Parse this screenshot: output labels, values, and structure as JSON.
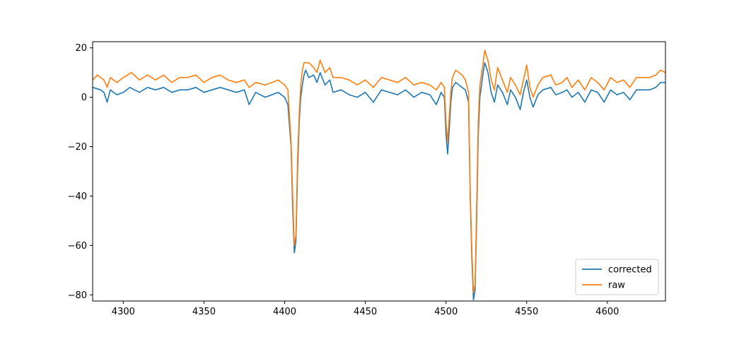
{
  "chart_data": {
    "type": "line",
    "title": "",
    "xlabel": "",
    "ylabel": "",
    "xlim": [
      4281,
      4636
    ],
    "ylim": [
      -82.5,
      22.5
    ],
    "xticks": [
      4300,
      4350,
      4400,
      4450,
      4500,
      4550,
      4600
    ],
    "yticks": [
      -80,
      -60,
      -40,
      -20,
      0,
      20
    ],
    "grid": false,
    "legend_placement": "lower-right",
    "series": [
      {
        "name": "corrected",
        "color": "#1f77b4",
        "points": [
          [
            4281,
            4
          ],
          [
            4286,
            3
          ],
          [
            4288,
            2
          ],
          [
            4290,
            -2
          ],
          [
            4292,
            3
          ],
          [
            4296,
            1
          ],
          [
            4300,
            2
          ],
          [
            4304,
            4
          ],
          [
            4310,
            2
          ],
          [
            4315,
            4
          ],
          [
            4320,
            3
          ],
          [
            4325,
            4
          ],
          [
            4330,
            2
          ],
          [
            4335,
            3
          ],
          [
            4340,
            3
          ],
          [
            4345,
            4
          ],
          [
            4350,
            2
          ],
          [
            4355,
            3
          ],
          [
            4360,
            4
          ],
          [
            4365,
            3
          ],
          [
            4370,
            2
          ],
          [
            4375,
            3
          ],
          [
            4378,
            -3
          ],
          [
            4382,
            2
          ],
          [
            4388,
            0
          ],
          [
            4392,
            1
          ],
          [
            4396,
            2
          ],
          [
            4400,
            0
          ],
          [
            4402,
            -3
          ],
          [
            4404,
            -20
          ],
          [
            4405,
            -45
          ],
          [
            4406,
            -63
          ],
          [
            4407,
            -58
          ],
          [
            4408,
            -30
          ],
          [
            4409,
            -10
          ],
          [
            4410,
            0
          ],
          [
            4411,
            5
          ],
          [
            4412,
            9
          ],
          [
            4413,
            11
          ],
          [
            4415,
            8
          ],
          [
            4418,
            9
          ],
          [
            4420,
            6
          ],
          [
            4422,
            10
          ],
          [
            4425,
            5
          ],
          [
            4428,
            7
          ],
          [
            4430,
            2
          ],
          [
            4435,
            3
          ],
          [
            4440,
            1
          ],
          [
            4445,
            0
          ],
          [
            4450,
            2
          ],
          [
            4455,
            -2
          ],
          [
            4460,
            3
          ],
          [
            4465,
            2
          ],
          [
            4470,
            1
          ],
          [
            4475,
            3
          ],
          [
            4480,
            0
          ],
          [
            4485,
            2
          ],
          [
            4490,
            1
          ],
          [
            4494,
            -3
          ],
          [
            4497,
            2
          ],
          [
            4499,
            0
          ],
          [
            4500,
            -15
          ],
          [
            4501,
            -23
          ],
          [
            4502,
            -13
          ],
          [
            4503,
            -2
          ],
          [
            4504,
            4
          ],
          [
            4506,
            6
          ],
          [
            4510,
            4
          ],
          [
            4512,
            3
          ],
          [
            4514,
            -2
          ],
          [
            4515,
            -40
          ],
          [
            4516,
            -65
          ],
          [
            4517,
            -82
          ],
          [
            4518,
            -78
          ],
          [
            4519,
            -50
          ],
          [
            4520,
            -15
          ],
          [
            4521,
            0
          ],
          [
            4523,
            10
          ],
          [
            4524,
            14
          ],
          [
            4526,
            10
          ],
          [
            4528,
            2
          ],
          [
            4530,
            -2
          ],
          [
            4532,
            5
          ],
          [
            4535,
            2
          ],
          [
            4538,
            -3
          ],
          [
            4540,
            3
          ],
          [
            4543,
            0
          ],
          [
            4546,
            -5
          ],
          [
            4548,
            2
          ],
          [
            4550,
            7
          ],
          [
            4552,
            0
          ],
          [
            4554,
            -4
          ],
          [
            4557,
            1
          ],
          [
            4560,
            3
          ],
          [
            4565,
            4
          ],
          [
            4568,
            1
          ],
          [
            4572,
            2
          ],
          [
            4575,
            3
          ],
          [
            4578,
            0
          ],
          [
            4582,
            2
          ],
          [
            4586,
            -2
          ],
          [
            4590,
            3
          ],
          [
            4594,
            2
          ],
          [
            4598,
            -2
          ],
          [
            4602,
            3
          ],
          [
            4606,
            1
          ],
          [
            4610,
            2
          ],
          [
            4614,
            -1
          ],
          [
            4618,
            3
          ],
          [
            4622,
            3
          ],
          [
            4626,
            3
          ],
          [
            4630,
            4
          ],
          [
            4633,
            6
          ],
          [
            4636,
            6
          ]
        ]
      },
      {
        "name": "raw",
        "color": "#ff7f0e",
        "points": [
          [
            4281,
            7
          ],
          [
            4284,
            9
          ],
          [
            4288,
            7
          ],
          [
            4290,
            4
          ],
          [
            4292,
            8
          ],
          [
            4296,
            6
          ],
          [
            4300,
            8
          ],
          [
            4305,
            10
          ],
          [
            4310,
            7
          ],
          [
            4315,
            9
          ],
          [
            4320,
            7
          ],
          [
            4325,
            9
          ],
          [
            4330,
            6
          ],
          [
            4335,
            8
          ],
          [
            4340,
            8
          ],
          [
            4345,
            9
          ],
          [
            4350,
            6
          ],
          [
            4355,
            8
          ],
          [
            4360,
            9
          ],
          [
            4365,
            7
          ],
          [
            4370,
            6
          ],
          [
            4375,
            7
          ],
          [
            4378,
            4
          ],
          [
            4382,
            6
          ],
          [
            4388,
            5
          ],
          [
            4392,
            6
          ],
          [
            4396,
            7
          ],
          [
            4400,
            5
          ],
          [
            4402,
            3
          ],
          [
            4404,
            -18
          ],
          [
            4405,
            -40
          ],
          [
            4406,
            -60
          ],
          [
            4407,
            -56
          ],
          [
            4408,
            -25
          ],
          [
            4409,
            -7
          ],
          [
            4410,
            5
          ],
          [
            4411,
            11
          ],
          [
            4412,
            14
          ],
          [
            4415,
            14
          ],
          [
            4418,
            12
          ],
          [
            4420,
            10
          ],
          [
            4422,
            15
          ],
          [
            4425,
            10
          ],
          [
            4428,
            12
          ],
          [
            4430,
            8
          ],
          [
            4435,
            8
          ],
          [
            4440,
            7
          ],
          [
            4445,
            5
          ],
          [
            4450,
            7
          ],
          [
            4455,
            4
          ],
          [
            4460,
            8
          ],
          [
            4465,
            7
          ],
          [
            4470,
            6
          ],
          [
            4475,
            8
          ],
          [
            4480,
            5
          ],
          [
            4485,
            6
          ],
          [
            4490,
            5
          ],
          [
            4494,
            3
          ],
          [
            4497,
            6
          ],
          [
            4499,
            4
          ],
          [
            4500,
            -10
          ],
          [
            4501,
            -18
          ],
          [
            4502,
            -8
          ],
          [
            4503,
            2
          ],
          [
            4504,
            8
          ],
          [
            4506,
            11
          ],
          [
            4510,
            9
          ],
          [
            4512,
            7
          ],
          [
            4514,
            2
          ],
          [
            4515,
            -38
          ],
          [
            4516,
            -62
          ],
          [
            4517,
            -79
          ],
          [
            4518,
            -76
          ],
          [
            4519,
            -45
          ],
          [
            4520,
            -10
          ],
          [
            4521,
            5
          ],
          [
            4523,
            14
          ],
          [
            4524,
            19
          ],
          [
            4526,
            15
          ],
          [
            4528,
            7
          ],
          [
            4530,
            3
          ],
          [
            4532,
            12
          ],
          [
            4535,
            7
          ],
          [
            4538,
            2
          ],
          [
            4540,
            8
          ],
          [
            4543,
            5
          ],
          [
            4546,
            1
          ],
          [
            4548,
            7
          ],
          [
            4550,
            13
          ],
          [
            4552,
            4
          ],
          [
            4554,
            0
          ],
          [
            4557,
            5
          ],
          [
            4560,
            8
          ],
          [
            4565,
            9
          ],
          [
            4568,
            5
          ],
          [
            4572,
            6
          ],
          [
            4575,
            8
          ],
          [
            4578,
            4
          ],
          [
            4582,
            7
          ],
          [
            4586,
            3
          ],
          [
            4590,
            8
          ],
          [
            4594,
            6
          ],
          [
            4598,
            3
          ],
          [
            4602,
            8
          ],
          [
            4606,
            6
          ],
          [
            4610,
            7
          ],
          [
            4614,
            4
          ],
          [
            4618,
            8
          ],
          [
            4622,
            8
          ],
          [
            4626,
            8
          ],
          [
            4630,
            9
          ],
          [
            4633,
            11
          ],
          [
            4636,
            10
          ]
        ]
      }
    ]
  }
}
